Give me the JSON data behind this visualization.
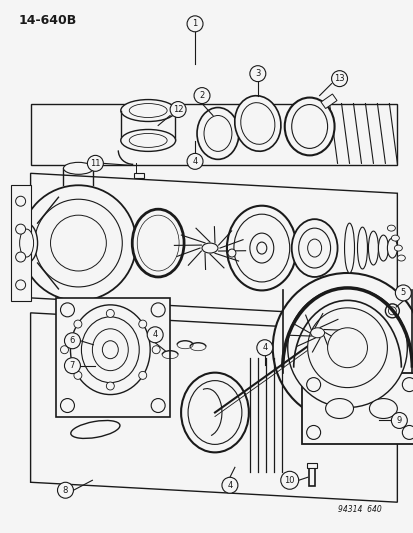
{
  "title": "14–640B",
  "bg_color": "#f5f5f5",
  "line_color": "#1a1a1a",
  "fig_width": 4.14,
  "fig_height": 5.33,
  "dpi": 100,
  "watermark": "94314  640"
}
